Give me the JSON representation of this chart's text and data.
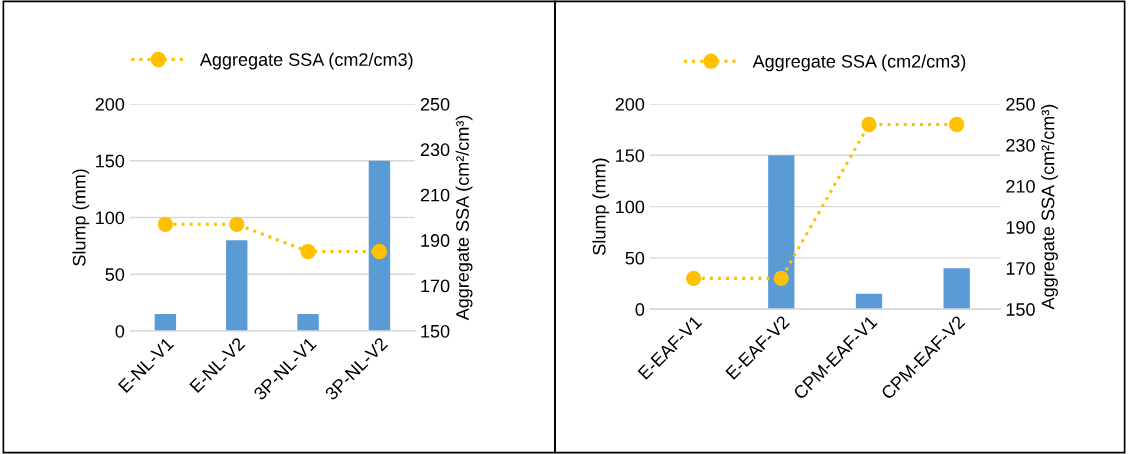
{
  "chart_data": [
    {
      "type": "bar",
      "categories": [
        "E-NL-V1",
        "E-NL-V2",
        "3P-NL-V1",
        "3P-NL-V2"
      ],
      "ylabel": "Slump (mm)",
      "y2label": "Aggregate SSA (cm²/cm³)",
      "ylim": [
        0,
        200
      ],
      "yticks": [
        0,
        50,
        100,
        150,
        200
      ],
      "y2lim": [
        150,
        250
      ],
      "y2ticks": [
        150,
        170,
        190,
        210,
        230,
        250
      ],
      "grid": "y",
      "legend": "top",
      "series": [
        {
          "color": "#5b9bd5",
          "values": [
            15,
            80,
            15,
            150
          ]
        },
        {
          "type": "line",
          "name": "Aggregate SSA (cm2/cm3)",
          "axis": "y2",
          "color": "#ffc000",
          "marker": "circle",
          "line_style": "dotted",
          "values": [
            197,
            197,
            185,
            185
          ]
        }
      ]
    },
    {
      "type": "bar",
      "categories": [
        "E-EAF-V1",
        "E-EAF-V2",
        "CPM-EAF-V1",
        "CPM-EAF-V2"
      ],
      "ylabel": "Slump (mm)",
      "y2label": "Aggregate SSA (cm²/cm³)",
      "ylim": [
        0,
        200
      ],
      "yticks": [
        0,
        50,
        100,
        150,
        200
      ],
      "y2lim": [
        150,
        250
      ],
      "y2ticks": [
        150,
        170,
        190,
        210,
        230,
        250
      ],
      "grid": "y",
      "legend": "top",
      "series": [
        {
          "color": "#5b9bd5",
          "values": [
            0,
            150,
            15,
            40
          ]
        },
        {
          "type": "line",
          "name": "Aggregate SSA (cm2/cm3)",
          "axis": "y2",
          "color": "#ffc000",
          "marker": "circle",
          "line_style": "dotted",
          "values": [
            165,
            165,
            240,
            240
          ]
        }
      ]
    }
  ]
}
